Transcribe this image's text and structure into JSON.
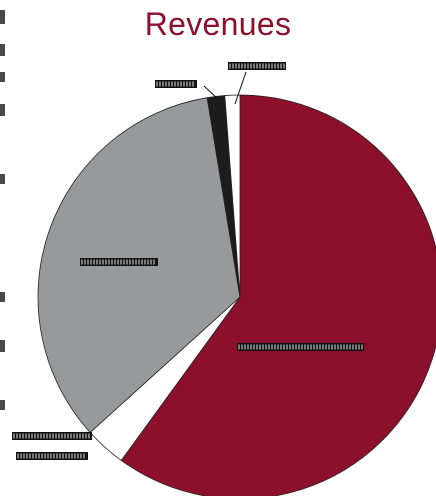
{
  "chart_data": {
    "type": "pie",
    "title": "Revenues",
    "start": "top",
    "direction": "clockwise",
    "slices": [
      {
        "value": 0.6,
        "color": "#8c0f2b",
        "label": "",
        "label_text": "▖▖▖▖▖▖▖▖▖▖▖▖▖▖▖▖▖▖▖▖▖▖▖▖▖▖▖▖▖▖▖▖▖▖▖▖▖▖▖▖▖▖▖"
      },
      {
        "value": 0.033,
        "color": "#ffffff",
        "label": "",
        "label_text": ""
      },
      {
        "value": 0.341,
        "color": "#98999b",
        "label": "",
        "label_text": ""
      },
      {
        "value": 0.014,
        "color": "#1c1c1c",
        "label": "",
        "label_text": ""
      },
      {
        "value": 0.012,
        "color": "#ffffff",
        "label": "",
        "label_text": ""
      }
    ]
  }
}
